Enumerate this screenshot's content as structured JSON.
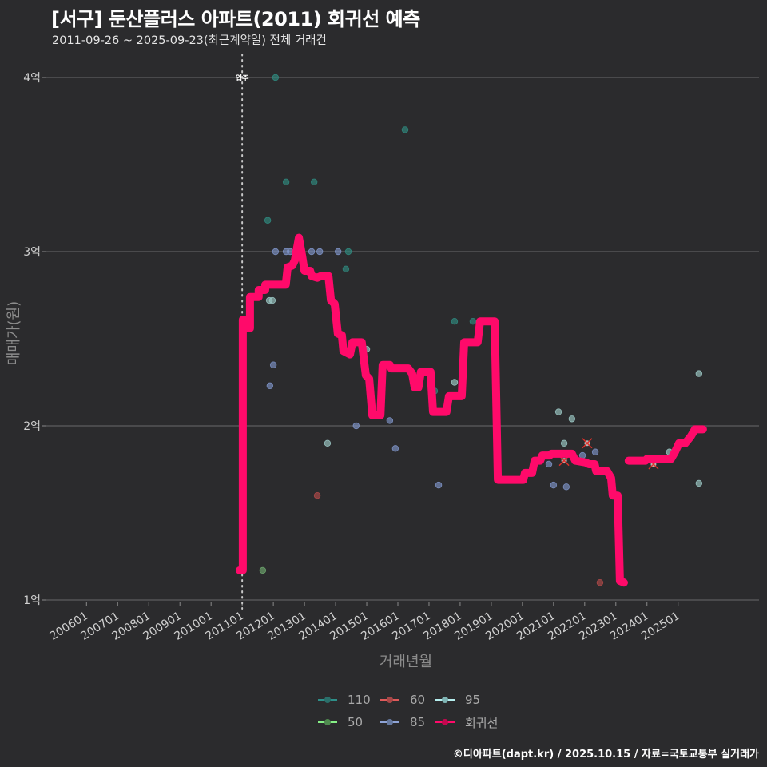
{
  "header": {
    "title": "[서구] 둔산플러스 아파트(2011) 회귀선 예측",
    "subtitle": "2011-09-26 ~ 2025-09-23(최근계약일) 전체 거래건"
  },
  "footer": {
    "credit": "©디아파트(dapt.kr) / 2025.10.15 / 자료=국토교통부 실거래가"
  },
  "colors": {
    "background": "#2b2b2d",
    "grid": "#5e5e60",
    "regression": "#ff0a6a"
  },
  "chart_data": {
    "type": "scatter",
    "title": "[서구] 둔산플러스 아파트(2011) 회귀선 예측",
    "subtitle": "2011-09-26 ~ 2025-09-23(최근계약일) 전체 거래건",
    "xlabel": "거래년월",
    "ylabel": "매매가(원)",
    "xlim": [
      2004.68,
      2027.6
    ],
    "ylim": [
      0.96,
      4.12
    ],
    "y_unit": "억",
    "grid": true,
    "legend_position": "bottom",
    "x_ticks": [
      {
        "value": 2006,
        "label": "200601"
      },
      {
        "value": 2007,
        "label": "200701"
      },
      {
        "value": 2008,
        "label": "200801"
      },
      {
        "value": 2009,
        "label": "200901"
      },
      {
        "value": 2010,
        "label": "201001"
      },
      {
        "value": 2011,
        "label": "201101"
      },
      {
        "value": 2012,
        "label": "201201"
      },
      {
        "value": 2013,
        "label": "201301"
      },
      {
        "value": 2014,
        "label": "201401"
      },
      {
        "value": 2015,
        "label": "201501"
      },
      {
        "value": 2016,
        "label": "201601"
      },
      {
        "value": 2017,
        "label": "201701"
      },
      {
        "value": 2018,
        "label": "201801"
      },
      {
        "value": 2019,
        "label": "201901"
      },
      {
        "value": 2020,
        "label": "202001"
      },
      {
        "value": 2021,
        "label": "202101"
      },
      {
        "value": 2022,
        "label": "202201"
      },
      {
        "value": 2023,
        "label": "202301"
      },
      {
        "value": 2024,
        "label": "202401"
      },
      {
        "value": 2025,
        "label": "202501"
      }
    ],
    "y_ticks": [
      {
        "value": 1,
        "label": "1억"
      },
      {
        "value": 2,
        "label": "2억"
      },
      {
        "value": 3,
        "label": "3억"
      },
      {
        "value": 4,
        "label": "4억"
      }
    ],
    "annotations": [
      {
        "type": "vline",
        "x": 2011.0,
        "label": "입주",
        "style": "dotted"
      }
    ],
    "legend": [
      {
        "name": "110",
        "line": "#2e8f89",
        "dot": "#2a6f6a"
      },
      {
        "name": "60",
        "line": "#e05a5a",
        "dot": "#a84848"
      },
      {
        "name": "95",
        "line": "#b6eeee",
        "dot": "#7fb4b4"
      },
      {
        "name": "50",
        "line": "#86f086",
        "dot": "#4f8a4f"
      },
      {
        "name": "85",
        "line": "#8ea3d6",
        "dot": "#66799f"
      },
      {
        "name": "회귀선",
        "line": "#ff0a6a",
        "dot": "#c4084f"
      }
    ],
    "series": [
      {
        "name": "110",
        "color": "#2f8a80",
        "points": [
          [
            2012.07,
            4.0
          ],
          [
            2016.23,
            3.7
          ],
          [
            2012.41,
            3.4
          ],
          [
            2013.31,
            3.4
          ],
          [
            2011.82,
            3.18
          ],
          [
            2014.41,
            3.0
          ],
          [
            2014.33,
            2.9
          ],
          [
            2017.82,
            2.6
          ],
          [
            2018.41,
            2.6
          ],
          [
            2017.18,
            2.2
          ]
        ]
      },
      {
        "name": "60",
        "color": "#b24a4a",
        "points": [
          [
            2013.41,
            1.6
          ],
          [
            2022.49,
            1.1
          ]
        ],
        "cancelled": [
          [
            2022.08,
            1.9
          ],
          [
            2021.34,
            1.8
          ],
          [
            2024.21,
            1.78
          ]
        ]
      },
      {
        "name": "95",
        "color": "#9cc9c6",
        "points": [
          [
            2011.87,
            2.72
          ],
          [
            2011.97,
            2.72
          ],
          [
            2013.74,
            1.9
          ],
          [
            2015.0,
            2.44
          ],
          [
            2017.82,
            2.25
          ],
          [
            2021.16,
            2.08
          ],
          [
            2021.59,
            2.04
          ],
          [
            2021.34,
            1.9
          ],
          [
            2025.67,
            2.3
          ],
          [
            2025.67,
            1.67
          ],
          [
            2024.72,
            1.85
          ]
        ]
      },
      {
        "name": "50",
        "color": "#6fa86f",
        "points": [
          [
            2011.66,
            1.17
          ]
        ]
      },
      {
        "name": "85",
        "color": "#7e93c8",
        "points": [
          [
            2012.07,
            3.0
          ],
          [
            2012.41,
            3.0
          ],
          [
            2012.54,
            3.0
          ],
          [
            2013.23,
            3.0
          ],
          [
            2013.49,
            3.0
          ],
          [
            2014.08,
            3.0
          ],
          [
            2012.0,
            2.35
          ],
          [
            2011.89,
            2.23
          ],
          [
            2014.66,
            2.0
          ],
          [
            2015.74,
            2.03
          ],
          [
            2015.92,
            1.87
          ],
          [
            2017.31,
            1.66
          ],
          [
            2020.85,
            1.78
          ],
          [
            2021.0,
            1.66
          ],
          [
            2021.41,
            1.65
          ],
          [
            2022.34,
            1.85
          ],
          [
            2021.93,
            1.83
          ]
        ]
      }
    ],
    "regression": {
      "name": "회귀선",
      "color": "#ff0a6a",
      "segments": [
        [
          [
            2010.92,
            1.17
          ],
          [
            2011.02,
            1.17
          ],
          [
            2011.02,
            2.61
          ],
          [
            2011.15,
            2.61
          ],
          [
            2011.15,
            2.56
          ],
          [
            2011.25,
            2.56
          ],
          [
            2011.25,
            2.74
          ],
          [
            2011.53,
            2.74
          ],
          [
            2011.53,
            2.78
          ],
          [
            2011.74,
            2.78
          ],
          [
            2011.74,
            2.81
          ],
          [
            2012.4,
            2.81
          ],
          [
            2012.46,
            2.91
          ],
          [
            2012.61,
            2.92
          ],
          [
            2012.69,
            2.95
          ],
          [
            2012.82,
            3.08
          ],
          [
            2012.92,
            2.98
          ],
          [
            2013.0,
            2.89
          ],
          [
            2013.18,
            2.89
          ],
          [
            2013.23,
            2.86
          ],
          [
            2013.41,
            2.85
          ],
          [
            2013.54,
            2.86
          ],
          [
            2013.77,
            2.86
          ],
          [
            2013.85,
            2.72
          ],
          [
            2013.97,
            2.7
          ],
          [
            2014.07,
            2.53
          ],
          [
            2014.2,
            2.52
          ],
          [
            2014.25,
            2.43
          ],
          [
            2014.46,
            2.41
          ],
          [
            2014.54,
            2.48
          ],
          [
            2014.84,
            2.48
          ],
          [
            2014.97,
            2.29
          ],
          [
            2015.08,
            2.27
          ],
          [
            2015.18,
            2.06
          ],
          [
            2015.44,
            2.06
          ],
          [
            2015.51,
            2.35
          ],
          [
            2015.74,
            2.35
          ],
          [
            2015.79,
            2.33
          ],
          [
            2016.33,
            2.33
          ],
          [
            2016.46,
            2.3
          ],
          [
            2016.54,
            2.22
          ],
          [
            2016.66,
            2.22
          ],
          [
            2016.74,
            2.31
          ],
          [
            2017.05,
            2.31
          ],
          [
            2017.13,
            2.08
          ],
          [
            2017.56,
            2.08
          ],
          [
            2017.64,
            2.17
          ],
          [
            2018.05,
            2.17
          ],
          [
            2018.13,
            2.48
          ],
          [
            2018.56,
            2.48
          ],
          [
            2018.64,
            2.6
          ],
          [
            2019.11,
            2.6
          ],
          [
            2019.21,
            1.69
          ],
          [
            2020.03,
            1.69
          ],
          [
            2020.08,
            1.73
          ],
          [
            2020.31,
            1.73
          ],
          [
            2020.39,
            1.8
          ],
          [
            2020.57,
            1.8
          ],
          [
            2020.64,
            1.83
          ],
          [
            2020.87,
            1.83
          ],
          [
            2020.93,
            1.84
          ],
          [
            2021.59,
            1.84
          ],
          [
            2021.7,
            1.8
          ],
          [
            2022.03,
            1.79
          ],
          [
            2022.14,
            1.78
          ],
          [
            2022.32,
            1.78
          ],
          [
            2022.37,
            1.74
          ],
          [
            2022.72,
            1.74
          ],
          [
            2022.85,
            1.7
          ],
          [
            2022.9,
            1.6
          ],
          [
            2023.06,
            1.6
          ],
          [
            2023.13,
            1.11
          ],
          [
            2023.26,
            1.1
          ]
        ],
        [
          [
            2023.41,
            1.8
          ],
          [
            2023.95,
            1.8
          ],
          [
            2024.0,
            1.81
          ],
          [
            2024.77,
            1.81
          ],
          [
            2024.9,
            1.85
          ],
          [
            2025.03,
            1.9
          ],
          [
            2025.23,
            1.9
          ],
          [
            2025.41,
            1.94
          ],
          [
            2025.54,
            1.98
          ],
          [
            2025.8,
            1.98
          ]
        ]
      ]
    }
  }
}
